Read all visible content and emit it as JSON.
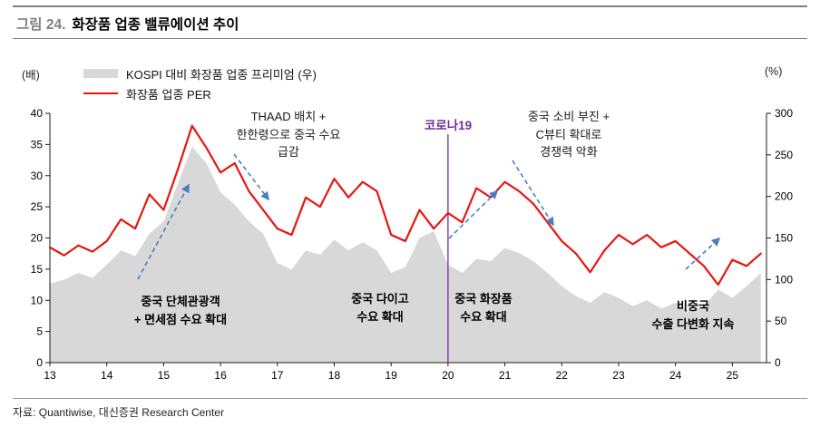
{
  "figure": {
    "label": "그림 24.",
    "title": "화장품 업종 밸류에이션 추이"
  },
  "source": "자료: Quantiwise, 대신증권 Research Center",
  "chart_data": {
    "type": "line",
    "title": "화장품 업종 밸류에이션 추이",
    "xlabel": "",
    "grid": false,
    "legend_position": "top-left",
    "arrow_color": "#4a7ebf",
    "x_ticks": [
      13,
      14,
      15,
      16,
      17,
      18,
      19,
      20,
      21,
      22,
      23,
      24,
      25
    ],
    "x": [
      13,
      13.25,
      13.5,
      13.75,
      14,
      14.25,
      14.5,
      14.75,
      15,
      15.25,
      15.5,
      15.75,
      16,
      16.25,
      16.5,
      16.75,
      17,
      17.25,
      17.5,
      17.75,
      18,
      18.25,
      18.5,
      18.75,
      19,
      19.25,
      19.5,
      19.75,
      20,
      20.25,
      20.5,
      20.75,
      21,
      21.25,
      21.5,
      21.75,
      22,
      22.25,
      22.5,
      22.75,
      23,
      23.25,
      23.5,
      23.75,
      24,
      24.25,
      24.5,
      24.75,
      25,
      25.25,
      25.5
    ],
    "left_axis": {
      "min": 0,
      "max": 40,
      "step": 5,
      "unit": "(배)"
    },
    "right_axis": {
      "min": 0,
      "max": 300,
      "step": 50,
      "unit": "(%)"
    },
    "series": [
      {
        "name": "KOSPI 대비 화장품 업종 프리미엄 (우)",
        "type": "area",
        "axis": "right",
        "color": "#d8d8d8",
        "values": [
          95,
          100,
          108,
          102,
          118,
          135,
          128,
          155,
          170,
          215,
          260,
          240,
          205,
          190,
          170,
          155,
          120,
          112,
          135,
          130,
          148,
          135,
          145,
          135,
          108,
          115,
          150,
          158,
          118,
          108,
          125,
          122,
          138,
          132,
          122,
          108,
          92,
          80,
          72,
          85,
          78,
          68,
          75,
          65,
          72,
          62,
          68,
          88,
          78,
          92,
          108
        ]
      },
      {
        "name": "화장품 업종 PER",
        "type": "line",
        "axis": "left",
        "color": "#e8150f",
        "values": [
          18.5,
          17.2,
          18.8,
          17.8,
          19.5,
          23,
          21.5,
          27,
          24.5,
          31,
          38,
          34.5,
          30.5,
          32,
          27.5,
          24.5,
          21.5,
          20.5,
          26.5,
          25,
          29.5,
          26.5,
          29,
          27.5,
          20.5,
          19.5,
          24.5,
          21.5,
          24,
          22.5,
          28,
          26.5,
          29,
          27.5,
          25.5,
          22.5,
          19.5,
          17.5,
          14.5,
          18,
          20.5,
          19,
          20.5,
          18.5,
          19.5,
          17.5,
          15.5,
          12.5,
          16.5,
          15.5,
          17.5
        ]
      }
    ],
    "event_line": {
      "x": 20,
      "label": "코로나19",
      "color": "#7030a0"
    },
    "annotations": [
      {
        "id": "thaad",
        "text": "THAAD 배치 +\n한한령으로 중국 수요\n급감"
      },
      {
        "id": "china-weak",
        "text": "중국 소비 부진 +\nC뷰티 확대로\n경쟁력 악화"
      },
      {
        "id": "group-tour",
        "text": "중국 단체관광객\n+ 면세점 수요 확대"
      },
      {
        "id": "daigou",
        "text": "중국 다이고\n수요 확대"
      },
      {
        "id": "china-cosmetics",
        "text": "중국 화장품\n수요 확대"
      },
      {
        "id": "non-china",
        "text": "비중국\n수출 다변화 지속"
      }
    ]
  }
}
